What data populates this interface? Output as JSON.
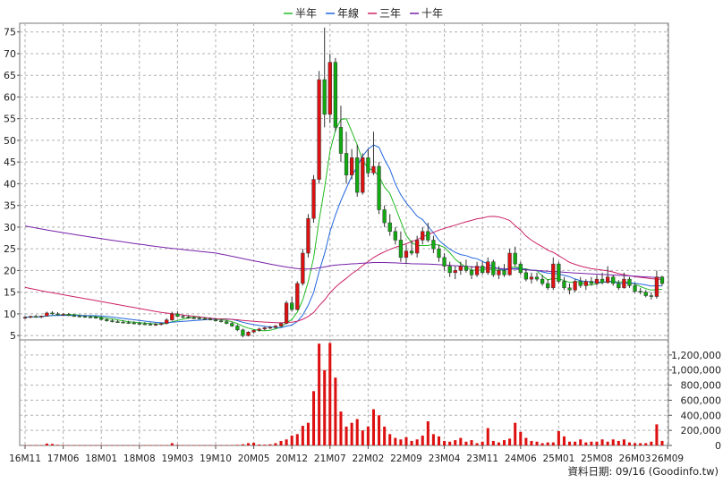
{
  "chart_data": {
    "type": "candlestick+volume",
    "legend": [
      {
        "name": "半年",
        "color": "#22bb22"
      },
      {
        "name": "年線",
        "color": "#2266dd"
      },
      {
        "name": "三年",
        "color": "#cc2266"
      },
      {
        "name": "十年",
        "color": "#7722aa"
      }
    ],
    "price_axis": {
      "ylim": [
        4,
        77
      ],
      "ticks": [
        "5",
        "10",
        "15",
        "20",
        "25",
        "30",
        "35",
        "40",
        "45",
        "50",
        "55",
        "60",
        "65",
        "70",
        "75"
      ]
    },
    "volume_axis": {
      "ylim": [
        0,
        1400000
      ],
      "ticks": [
        "0",
        "200,000",
        "400,000",
        "600,000",
        "800,000",
        "1,000,000",
        "1,200,000"
      ]
    },
    "x_ticks": [
      "16M11",
      "17M06",
      "18M01",
      "18M08",
      "19M03",
      "19M10",
      "20M05",
      "20M12",
      "21M07",
      "22M02",
      "22M09",
      "23M04",
      "23M11",
      "24M06",
      "25M01",
      "25M08",
      "26M03",
      "26M09"
    ],
    "x_tick_index": [
      0,
      7,
      14,
      21,
      28,
      35,
      42,
      49,
      56,
      63,
      70,
      77,
      84,
      91,
      98,
      105,
      112,
      118
    ],
    "colors": {
      "up": "#dd1111",
      "down": "#11aa11",
      "volume": "#dd1111",
      "grid": "#b0b0b0"
    },
    "ohlc": [
      [
        9.0,
        9.5,
        8.8,
        9.2
      ],
      [
        9.2,
        9.6,
        9.0,
        9.4
      ],
      [
        9.4,
        9.8,
        9.1,
        9.3
      ],
      [
        9.3,
        9.6,
        9.0,
        9.5
      ],
      [
        9.5,
        10.5,
        9.4,
        10.2
      ],
      [
        10.2,
        10.6,
        9.8,
        10.0
      ],
      [
        10.0,
        10.4,
        9.6,
        9.8
      ],
      [
        9.8,
        10.2,
        9.5,
        9.9
      ],
      [
        9.9,
        10.2,
        9.5,
        9.6
      ],
      [
        9.6,
        10.0,
        9.3,
        9.5
      ],
      [
        9.5,
        9.8,
        9.2,
        9.4
      ],
      [
        9.4,
        9.7,
        9.1,
        9.3
      ],
      [
        9.3,
        9.6,
        9.0,
        9.2
      ],
      [
        9.2,
        9.5,
        8.9,
        9.1
      ],
      [
        9.1,
        9.4,
        8.5,
        8.7
      ],
      [
        8.7,
        9.0,
        8.2,
        8.4
      ],
      [
        8.4,
        8.8,
        8.0,
        8.2
      ],
      [
        8.2,
        8.6,
        7.9,
        8.1
      ],
      [
        8.1,
        8.5,
        7.8,
        8.0
      ],
      [
        8.0,
        8.4,
        7.7,
        7.9
      ],
      [
        7.9,
        8.3,
        7.6,
        7.8
      ],
      [
        7.8,
        8.2,
        7.5,
        7.7
      ],
      [
        7.7,
        8.1,
        7.4,
        7.6
      ],
      [
        7.6,
        8.0,
        7.3,
        7.5
      ],
      [
        7.5,
        7.9,
        7.2,
        7.6
      ],
      [
        7.6,
        8.0,
        7.3,
        7.8
      ],
      [
        7.8,
        9.0,
        7.6,
        8.6
      ],
      [
        8.6,
        10.5,
        8.4,
        10.0
      ],
      [
        10.0,
        10.6,
        9.2,
        9.4
      ],
      [
        9.4,
        9.8,
        9.0,
        9.3
      ],
      [
        9.3,
        9.7,
        8.9,
        9.1
      ],
      [
        9.1,
        9.5,
        8.8,
        9.0
      ],
      [
        9.0,
        9.4,
        8.7,
        8.9
      ],
      [
        8.9,
        9.3,
        8.6,
        8.8
      ],
      [
        8.8,
        9.2,
        8.5,
        8.7
      ],
      [
        8.7,
        9.1,
        8.2,
        8.4
      ],
      [
        8.4,
        8.8,
        8.0,
        8.2
      ],
      [
        8.2,
        8.6,
        7.6,
        7.8
      ],
      [
        7.8,
        8.2,
        7.0,
        7.2
      ],
      [
        7.2,
        7.6,
        6.0,
        6.3
      ],
      [
        6.3,
        6.6,
        4.6,
        5.0
      ],
      [
        5.0,
        6.0,
        4.8,
        5.8
      ],
      [
        5.8,
        6.4,
        5.5,
        6.2
      ],
      [
        6.2,
        6.8,
        5.9,
        6.5
      ],
      [
        6.5,
        7.0,
        6.2,
        6.8
      ],
      [
        6.8,
        7.2,
        6.5,
        6.9
      ],
      [
        6.9,
        7.4,
        6.6,
        7.2
      ],
      [
        7.2,
        8.0,
        7.0,
        7.8
      ],
      [
        7.8,
        13.0,
        7.6,
        12.5
      ],
      [
        12.5,
        14.0,
        10.5,
        11.0
      ],
      [
        11.0,
        17.5,
        10.8,
        17.0
      ],
      [
        17.0,
        25.0,
        16.5,
        24.0
      ],
      [
        24.0,
        33.0,
        23.0,
        32.0
      ],
      [
        32.0,
        42.0,
        31.0,
        41.0
      ],
      [
        41.0,
        66.0,
        40.0,
        64.0
      ],
      [
        64.0,
        76.0,
        53.0,
        56.0
      ],
      [
        56.0,
        70.0,
        54.0,
        68.0
      ],
      [
        68.0,
        69.0,
        52.0,
        53.0
      ],
      [
        53.0,
        58.0,
        45.0,
        47.0
      ],
      [
        47.0,
        52.0,
        40.0,
        42.0
      ],
      [
        42.0,
        48.0,
        41.0,
        46.0
      ],
      [
        46.0,
        49.0,
        37.0,
        38.0
      ],
      [
        38.0,
        47.0,
        37.5,
        46.0
      ],
      [
        46.0,
        48.0,
        41.5,
        42.5
      ],
      [
        42.5,
        52.0,
        42.0,
        44.0
      ],
      [
        44.0,
        45.0,
        33.0,
        34.0
      ],
      [
        34.0,
        35.0,
        30.0,
        31.0
      ],
      [
        31.0,
        33.0,
        28.0,
        29.0
      ],
      [
        29.0,
        30.0,
        26.0,
        27.0
      ],
      [
        27.0,
        29.0,
        22.0,
        23.0
      ],
      [
        23.0,
        26.0,
        21.5,
        24.5
      ],
      [
        24.5,
        27.0,
        23.5,
        24.0
      ],
      [
        24.0,
        28.0,
        23.0,
        27.0
      ],
      [
        27.0,
        30.0,
        26.0,
        29.0
      ],
      [
        29.0,
        31.0,
        26.5,
        27.0
      ],
      [
        27.0,
        28.0,
        24.0,
        25.0
      ],
      [
        25.0,
        26.0,
        22.0,
        23.0
      ],
      [
        23.0,
        24.0,
        20.0,
        21.0
      ],
      [
        21.0,
        22.0,
        18.5,
        19.5
      ],
      [
        19.5,
        21.0,
        18.0,
        20.0
      ],
      [
        20.0,
        22.0,
        19.0,
        21.0
      ],
      [
        21.0,
        22.5,
        19.5,
        20.0
      ],
      [
        20.0,
        21.0,
        18.0,
        19.0
      ],
      [
        19.0,
        22.0,
        18.5,
        21.0
      ],
      [
        21.0,
        22.0,
        19.0,
        19.5
      ],
      [
        19.5,
        23.0,
        19.0,
        22.0
      ],
      [
        22.0,
        22.5,
        18.5,
        19.0
      ],
      [
        19.0,
        21.0,
        18.0,
        20.0
      ],
      [
        20.0,
        21.5,
        18.5,
        19.0
      ],
      [
        19.0,
        25.0,
        18.8,
        24.0
      ],
      [
        24.0,
        25.5,
        21.0,
        21.5
      ],
      [
        21.5,
        22.0,
        19.0,
        19.5
      ],
      [
        19.5,
        20.5,
        17.5,
        18.0
      ],
      [
        18.0,
        19.5,
        17.0,
        18.5
      ],
      [
        18.5,
        19.5,
        17.5,
        18.0
      ],
      [
        18.0,
        19.0,
        16.5,
        17.0
      ],
      [
        17.0,
        18.0,
        15.5,
        16.0
      ],
      [
        16.0,
        23.0,
        15.5,
        21.5
      ],
      [
        21.5,
        22.0,
        17.0,
        17.5
      ],
      [
        17.5,
        18.5,
        15.5,
        16.0
      ],
      [
        16.0,
        17.0,
        14.5,
        15.5
      ],
      [
        15.5,
        18.0,
        15.0,
        17.5
      ],
      [
        17.5,
        18.5,
        16.0,
        16.5
      ],
      [
        16.5,
        18.0,
        15.5,
        17.5
      ],
      [
        17.5,
        18.5,
        16.5,
        17.0
      ],
      [
        17.0,
        19.0,
        16.5,
        18.0
      ],
      [
        18.0,
        19.5,
        16.8,
        17.2
      ],
      [
        17.2,
        21.0,
        17.0,
        18.5
      ],
      [
        18.5,
        19.0,
        16.5,
        17.0
      ],
      [
        17.0,
        17.8,
        15.5,
        16.0
      ],
      [
        16.0,
        19.5,
        15.8,
        18.0
      ],
      [
        18.0,
        18.5,
        16.0,
        16.5
      ],
      [
        16.5,
        17.0,
        14.8,
        15.2
      ],
      [
        15.2,
        16.0,
        14.5,
        15.0
      ],
      [
        15.0,
        15.5,
        13.8,
        14.2
      ],
      [
        14.2,
        15.0,
        13.3,
        14.0
      ],
      [
        14.0,
        20.0,
        13.5,
        18.5
      ],
      [
        18.5,
        18.8,
        16.5,
        17.0
      ]
    ],
    "volume": [
      3000,
      2000,
      4000,
      3000,
      25000,
      20000,
      8000,
      5000,
      4000,
      3000,
      3000,
      2000,
      2000,
      3000,
      5000,
      3000,
      2000,
      2000,
      3000,
      2000,
      2000,
      2000,
      3000,
      2000,
      2000,
      2000,
      3000,
      30000,
      8000,
      3000,
      2000,
      2000,
      2000,
      2000,
      2000,
      2000,
      3000,
      3000,
      5000,
      8000,
      15000,
      30000,
      35000,
      12000,
      10000,
      15000,
      30000,
      60000,
      80000,
      130000,
      150000,
      260000,
      300000,
      720000,
      1350000,
      1000000,
      1360000,
      900000,
      450000,
      250000,
      300000,
      350000,
      200000,
      250000,
      480000,
      400000,
      250000,
      150000,
      100000,
      80000,
      110000,
      60000,
      80000,
      130000,
      320000,
      150000,
      120000,
      60000,
      50000,
      70000,
      100000,
      50000,
      70000,
      30000,
      50000,
      230000,
      60000,
      40000,
      70000,
      90000,
      300000,
      180000,
      100000,
      60000,
      50000,
      30000,
      40000,
      40000,
      190000,
      120000,
      50000,
      50000,
      80000,
      40000,
      50000,
      50000,
      80000,
      50000,
      80000,
      60000,
      80000,
      40000,
      30000,
      30000,
      30000,
      50000,
      280000,
      60000
    ]
  },
  "footer": {
    "source": "資料日期: 09/16  (Goodinfo.tw)"
  }
}
